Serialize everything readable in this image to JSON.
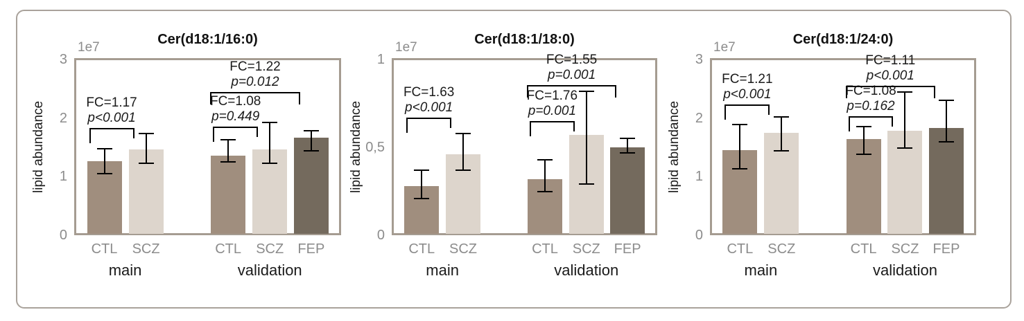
{
  "figure": {
    "card_border_color": "#a9a29b",
    "background": "#ffffff"
  },
  "colors": {
    "bar_CTL": "#a08e7e",
    "bar_SCZ": "#ddd5cc",
    "bar_FEP": "#746a5d",
    "axis_frame": "#a59c91",
    "tick_text": "#8c8c8c",
    "dark_text": "#1a1a1a",
    "error_bar": "#000000"
  },
  "chart_data": [
    {
      "type": "bar",
      "title": "Cer(d18:1/16:0)",
      "ylabel": "lipid abundance",
      "offset_label": "1e7",
      "ylim": [
        0,
        3
      ],
      "yticks": [
        {
          "v": 0,
          "label": "0"
        },
        {
          "v": 1,
          "label": "1"
        },
        {
          "v": 2,
          "label": "2"
        },
        {
          "v": 3,
          "label": "3"
        }
      ],
      "groups": [
        {
          "label": "main"
        },
        {
          "label": "validation"
        }
      ],
      "bars": [
        {
          "group": "main",
          "category": "CTL",
          "value": 1.26,
          "err_low": 1.05,
          "err_high": 1.48
        },
        {
          "group": "main",
          "category": "SCZ",
          "value": 1.47,
          "err_low": 1.23,
          "err_high": 1.74
        },
        {
          "group": "validation",
          "category": "CTL",
          "value": 1.36,
          "err_low": 1.25,
          "err_high": 1.63
        },
        {
          "group": "validation",
          "category": "SCZ",
          "value": 1.47,
          "err_low": 1.23,
          "err_high": 1.92
        },
        {
          "group": "validation",
          "category": "FEP",
          "value": 1.66,
          "err_low": 1.44,
          "err_high": 1.78
        }
      ],
      "annotations": [
        {
          "from": 0,
          "to": 1,
          "y": 1.83,
          "fc": "FC=1.17",
          "p": "p<0.001"
        },
        {
          "from": 2,
          "to": 3,
          "y": 1.85,
          "fc": "FC=1.08",
          "p": "p=0.449"
        },
        {
          "from": 2,
          "to": 4,
          "y": 2.44,
          "fc": "FC=1.22",
          "p": "p=0.012"
        }
      ]
    },
    {
      "type": "bar",
      "title": "Cer(d18:1/18:0)",
      "ylabel": "lipid abundance",
      "offset_label": "1e7",
      "ylim": [
        0,
        1
      ],
      "yticks": [
        {
          "v": 0,
          "label": "0"
        },
        {
          "v": 0.5,
          "label": "0,5"
        },
        {
          "v": 1,
          "label": "1"
        }
      ],
      "groups": [
        {
          "label": "main"
        },
        {
          "label": "validation"
        }
      ],
      "bars": [
        {
          "group": "main",
          "category": "CTL",
          "value": 0.28,
          "err_low": 0.21,
          "err_high": 0.37
        },
        {
          "group": "main",
          "category": "SCZ",
          "value": 0.46,
          "err_low": 0.37,
          "err_high": 0.58
        },
        {
          "group": "validation",
          "category": "CTL",
          "value": 0.32,
          "err_low": 0.25,
          "err_high": 0.43
        },
        {
          "group": "validation",
          "category": "SCZ",
          "value": 0.57,
          "err_low": 0.29,
          "err_high": 0.82
        },
        {
          "group": "validation",
          "category": "FEP",
          "value": 0.5,
          "err_low": 0.47,
          "err_high": 0.55
        }
      ],
      "annotations": [
        {
          "from": 0,
          "to": 1,
          "y": 0.67,
          "fc": "FC=1.63",
          "p": "p<0.001"
        },
        {
          "from": 2,
          "to": 3,
          "y": 0.65,
          "fc": "FC=1.76",
          "p": "p=0.001"
        },
        {
          "from": 2,
          "to": 4,
          "y": 0.855,
          "fc": "FC=1.55",
          "p": "p=0.001"
        }
      ]
    },
    {
      "type": "bar",
      "title": "Cer(d18:1/24:0)",
      "ylabel": "lipid abundance",
      "offset_label": "1e7",
      "ylim": [
        0,
        3
      ],
      "yticks": [
        {
          "v": 0,
          "label": "0"
        },
        {
          "v": 1,
          "label": "1"
        },
        {
          "v": 2,
          "label": "2"
        },
        {
          "v": 3,
          "label": "3"
        }
      ],
      "groups": [
        {
          "label": "main"
        },
        {
          "label": "validation"
        }
      ],
      "bars": [
        {
          "group": "main",
          "category": "CTL",
          "value": 1.45,
          "err_low": 1.13,
          "err_high": 1.89
        },
        {
          "group": "main",
          "category": "SCZ",
          "value": 1.75,
          "err_low": 1.44,
          "err_high": 2.02
        },
        {
          "group": "validation",
          "category": "CTL",
          "value": 1.64,
          "err_low": 1.38,
          "err_high": 1.86
        },
        {
          "group": "validation",
          "category": "SCZ",
          "value": 1.78,
          "err_low": 1.49,
          "err_high": 2.45
        },
        {
          "group": "validation",
          "category": "FEP",
          "value": 1.83,
          "err_low": 1.6,
          "err_high": 2.3
        }
      ],
      "annotations": [
        {
          "from": 0,
          "to": 1,
          "y": 2.23,
          "fc": "FC=1.21",
          "p": "p<0.001"
        },
        {
          "from": 2,
          "to": 3,
          "y": 2.03,
          "fc": "FC=1.08",
          "p": "p=0.162"
        },
        {
          "from": 2,
          "to": 4,
          "y": 2.55,
          "fc": "FC=1.11",
          "p": "p<0.001"
        }
      ]
    }
  ]
}
